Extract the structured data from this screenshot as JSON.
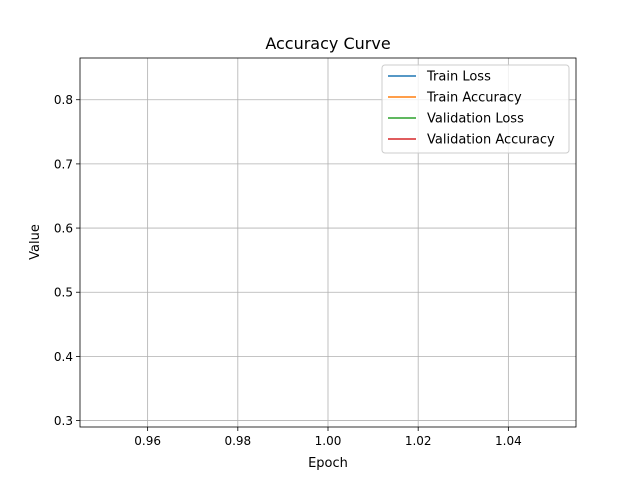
{
  "chart_data": {
    "type": "line",
    "title": "Accuracy Curve",
    "xlabel": "Epoch",
    "ylabel": "Value",
    "xlim": [
      0.945,
      1.055
    ],
    "ylim": [
      0.29,
      0.865
    ],
    "x_ticks": [
      0.96,
      0.98,
      1.0,
      1.02,
      1.04
    ],
    "x_tick_labels": [
      "0.96",
      "0.98",
      "1.00",
      "1.02",
      "1.04"
    ],
    "y_ticks": [
      0.3,
      0.4,
      0.5,
      0.6,
      0.7,
      0.8
    ],
    "y_tick_labels": [
      "0.3",
      "0.4",
      "0.5",
      "0.6",
      "0.7",
      "0.8"
    ],
    "grid": true,
    "legend_position": "top-right",
    "series": [
      {
        "name": "Train Loss",
        "color": "#1f77b4",
        "x": [],
        "y": []
      },
      {
        "name": "Train Accuracy",
        "color": "#ff7f0e",
        "x": [],
        "y": []
      },
      {
        "name": "Validation Loss",
        "color": "#2ca02c",
        "x": [],
        "y": []
      },
      {
        "name": "Validation Accuracy",
        "color": "#d62728",
        "x": [],
        "y": []
      }
    ]
  }
}
